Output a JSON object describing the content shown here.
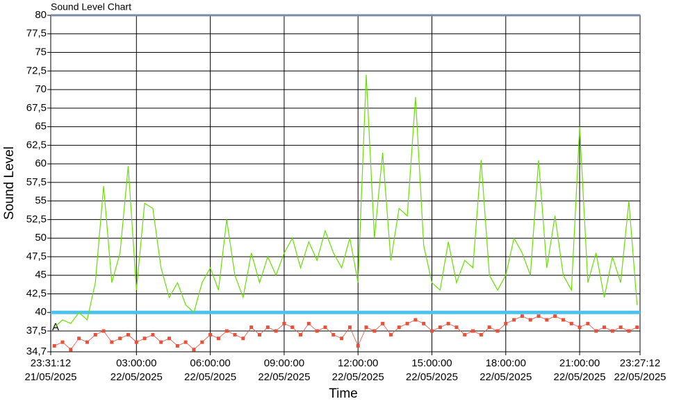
{
  "chart_data": {
    "type": "line",
    "title": "Sound Level Chart",
    "x_label": "Time",
    "y_label": "Sound Level",
    "annotation": "A",
    "threshold": 40,
    "threshold_color": "#4cc3ee",
    "grid": true,
    "x": [
      "2025-05-21T23:40:00",
      "2025-05-22T00:00:00",
      "2025-05-22T00:20:00",
      "2025-05-22T00:40:00",
      "2025-05-22T01:00:00",
      "2025-05-22T01:20:00",
      "2025-05-22T01:40:00",
      "2025-05-22T02:00:00",
      "2025-05-22T02:20:00",
      "2025-05-22T02:40:00",
      "2025-05-22T03:00:00",
      "2025-05-22T03:20:00",
      "2025-05-22T03:40:00",
      "2025-05-22T04:00:00",
      "2025-05-22T04:20:00",
      "2025-05-22T04:40:00",
      "2025-05-22T05:00:00",
      "2025-05-22T05:20:00",
      "2025-05-22T05:40:00",
      "2025-05-22T06:00:00",
      "2025-05-22T06:20:00",
      "2025-05-22T06:40:00",
      "2025-05-22T07:00:00",
      "2025-05-22T07:20:00",
      "2025-05-22T07:40:00",
      "2025-05-22T08:00:00",
      "2025-05-22T08:20:00",
      "2025-05-22T08:40:00",
      "2025-05-22T09:00:00",
      "2025-05-22T09:20:00",
      "2025-05-22T09:40:00",
      "2025-05-22T10:00:00",
      "2025-05-22T10:20:00",
      "2025-05-22T10:40:00",
      "2025-05-22T11:00:00",
      "2025-05-22T11:20:00",
      "2025-05-22T11:40:00",
      "2025-05-22T12:00:00",
      "2025-05-22T12:20:00",
      "2025-05-22T12:40:00",
      "2025-05-22T13:00:00",
      "2025-05-22T13:20:00",
      "2025-05-22T13:40:00",
      "2025-05-22T14:00:00",
      "2025-05-22T14:20:00",
      "2025-05-22T14:40:00",
      "2025-05-22T15:00:00",
      "2025-05-22T15:20:00",
      "2025-05-22T15:40:00",
      "2025-05-22T16:00:00",
      "2025-05-22T16:20:00",
      "2025-05-22T16:40:00",
      "2025-05-22T17:00:00",
      "2025-05-22T17:20:00",
      "2025-05-22T17:40:00",
      "2025-05-22T18:00:00",
      "2025-05-22T18:20:00",
      "2025-05-22T18:40:00",
      "2025-05-22T19:00:00",
      "2025-05-22T19:20:00",
      "2025-05-22T19:40:00",
      "2025-05-22T20:00:00",
      "2025-05-22T20:20:00",
      "2025-05-22T20:40:00",
      "2025-05-22T21:00:00",
      "2025-05-22T21:20:00",
      "2025-05-22T21:40:00",
      "2025-05-22T22:00:00",
      "2025-05-22T22:20:00",
      "2025-05-22T22:40:00",
      "2025-05-22T23:00:00",
      "2025-05-22T23:20:00"
    ],
    "series": [
      {
        "color": "#66e000",
        "values": [
          38,
          39,
          38.5,
          40,
          39,
          44,
          57,
          44,
          48,
          59.7,
          43,
          54.7,
          54,
          46,
          42,
          44,
          41,
          40,
          44,
          46,
          43,
          52.5,
          45,
          42,
          48,
          44,
          47.5,
          45,
          48,
          50,
          46,
          49.5,
          47,
          51,
          48,
          46,
          50,
          44,
          72,
          50,
          61.5,
          47,
          54,
          53,
          69,
          49,
          44,
          43,
          49.5,
          44,
          47,
          46,
          60.5,
          45,
          43,
          45,
          50,
          48,
          45,
          60.5,
          46,
          53,
          45,
          43,
          65,
          44,
          48,
          42,
          47.5,
          44,
          55,
          41
        ]
      },
      {
        "color": "#e8503a",
        "values": [
          35.5,
          36,
          35,
          36.5,
          36,
          37,
          37.5,
          36,
          36.5,
          37,
          36,
          36.5,
          37,
          36,
          36.5,
          35.5,
          36,
          35,
          36,
          37,
          36.5,
          37.5,
          37,
          36.5,
          38,
          37,
          38,
          37.5,
          38.5,
          38,
          37,
          38.5,
          37.5,
          38,
          37,
          36.5,
          38,
          35.5,
          38,
          37.5,
          38.5,
          37,
          38,
          38.5,
          39,
          38.5,
          37.5,
          38,
          38.5,
          38,
          37,
          37.5,
          37,
          38,
          37.5,
          38.5,
          39,
          39.5,
          39,
          39.5,
          39,
          39.5,
          39,
          38.5,
          38,
          38.5,
          37.5,
          38,
          37.5,
          38,
          37.5,
          38
        ]
      }
    ],
    "xlim": [
      "2025-05-21T23:31:12",
      "2025-05-22T23:27:12"
    ],
    "xticks": [
      {
        "value": "2025-05-21T23:31:12",
        "label": "23:31:12\n21/05/2025"
      },
      {
        "value": "2025-05-22T03:00:00",
        "label": "03:00:00\n22/05/2025"
      },
      {
        "value": "2025-05-22T06:00:00",
        "label": "06:00:00\n22/05/2025"
      },
      {
        "value": "2025-05-22T09:00:00",
        "label": "09:00:00\n22/05/2025"
      },
      {
        "value": "2025-05-22T12:00:00",
        "label": "12:00:00\n22/05/2025"
      },
      {
        "value": "2025-05-22T15:00:00",
        "label": "15:00:00\n22/05/2025"
      },
      {
        "value": "2025-05-22T18:00:00",
        "label": "18:00:00\n22/05/2025"
      },
      {
        "value": "2025-05-22T21:00:00",
        "label": "21:00:00\n22/05/2025"
      },
      {
        "value": "2025-05-22T23:27:12",
        "label": "23:27:12\n22/05/2025"
      }
    ],
    "ylim": [
      34.7,
      80
    ],
    "yticks": [
      {
        "value": 34.7,
        "label": "34,7"
      },
      {
        "value": 37.5,
        "label": "37,5"
      },
      40,
      {
        "value": 42.5,
        "label": "42,5"
      },
      45,
      {
        "value": 47.5,
        "label": "47,5"
      },
      50,
      {
        "value": 52.5,
        "label": "52,5"
      },
      55,
      {
        "value": 57.5,
        "label": "57,5"
      },
      60,
      {
        "value": 62.5,
        "label": "62,5"
      },
      65,
      {
        "value": 67.5,
        "label": "67,5"
      },
      70,
      {
        "value": 72.5,
        "label": "72,5"
      },
      75,
      {
        "value": 77.5,
        "label": "77,5"
      },
      80
    ]
  }
}
